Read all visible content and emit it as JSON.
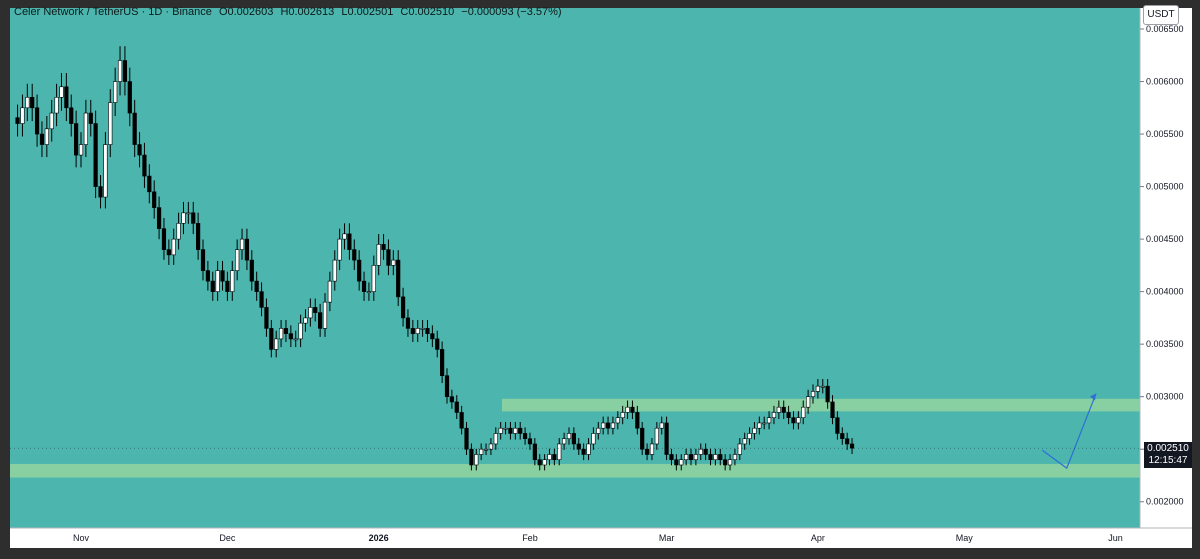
{
  "legend": {
    "symbol": "Celer Network / TetherUS · 1D · Binance",
    "open": "O0.002603",
    "high": "H0.002613",
    "low": "L0.002501",
    "close": "C0.002510",
    "change": "−0.000093 (−3.57%)"
  },
  "unit_button": "USDT",
  "last_price": {
    "price": "0.002510",
    "countdown": "12:15:47"
  },
  "colors": {
    "background": "#4cb5ae",
    "up_candle": "#ffffff",
    "down_candle": "#000000",
    "zone": "#8fd3a0",
    "projection": "#2f6fd6"
  },
  "chart_data": {
    "type": "candlestick",
    "y_ticks": [
      "0.006500",
      "0.006000",
      "0.005500",
      "0.005000",
      "0.004500",
      "0.004000",
      "0.003500",
      "0.003000",
      "0.002500",
      "0.002000"
    ],
    "ylim": [
      0.00175,
      0.0067
    ],
    "x_ticks": [
      {
        "label": "Nov",
        "day": 0
      },
      {
        "label": "Dec",
        "day": 30
      },
      {
        "label": "2026",
        "day": 61
      },
      {
        "label": "Feb",
        "day": 92
      },
      {
        "label": "Mar",
        "day": 120
      },
      {
        "label": "Apr",
        "day": 151
      },
      {
        "label": "May",
        "day": 181
      },
      {
        "label": "Jun",
        "day": 212
      }
    ],
    "support_zone": [
      0.00223,
      0.00236
    ],
    "resistance_zone": [
      0.00286,
      0.00298
    ],
    "projection": [
      {
        "day": 197,
        "price": 0.00249
      },
      {
        "day": 202,
        "price": 0.00232
      },
      {
        "day": 208,
        "price": 0.00303
      }
    ],
    "close_series": [
      0.0056,
      0.00575,
      0.00585,
      0.00575,
      0.0055,
      0.0054,
      0.00555,
      0.0057,
      0.00585,
      0.00595,
      0.00575,
      0.0056,
      0.0053,
      0.0054,
      0.0057,
      0.0056,
      0.005,
      0.0049,
      0.0054,
      0.0058,
      0.006,
      0.0062,
      0.006,
      0.0057,
      0.0054,
      0.0053,
      0.0051,
      0.00495,
      0.0048,
      0.0046,
      0.0044,
      0.00435,
      0.0045,
      0.00465,
      0.00475,
      0.00475,
      0.00465,
      0.0044,
      0.0042,
      0.0041,
      0.004,
      0.0042,
      0.0041,
      0.004,
      0.0042,
      0.0044,
      0.0045,
      0.0043,
      0.0041,
      0.004,
      0.00385,
      0.00365,
      0.00345,
      0.00355,
      0.00365,
      0.0036,
      0.00355,
      0.00355,
      0.0037,
      0.00375,
      0.00385,
      0.0038,
      0.00365,
      0.0039,
      0.0041,
      0.0043,
      0.0045,
      0.00455,
      0.0044,
      0.0043,
      0.0041,
      0.004,
      0.004,
      0.00425,
      0.00445,
      0.0044,
      0.00425,
      0.0043,
      0.00395,
      0.00375,
      0.00365,
      0.0036,
      0.00365,
      0.00365,
      0.0036,
      0.00355,
      0.00345,
      0.0032,
      0.003,
      0.00295,
      0.00285,
      0.0027,
      0.0025,
      0.00235,
      0.00245,
      0.0025,
      0.0025,
      0.00255,
      0.00265,
      0.0027,
      0.0027,
      0.00265,
      0.0027,
      0.00265,
      0.0026,
      0.00255,
      0.0024,
      0.00235,
      0.0024,
      0.00245,
      0.0024,
      0.00255,
      0.0026,
      0.00265,
      0.00255,
      0.0025,
      0.00245,
      0.00255,
      0.00265,
      0.0027,
      0.00275,
      0.0027,
      0.00275,
      0.0028,
      0.00285,
      0.0029,
      0.00285,
      0.0027,
      0.0025,
      0.00245,
      0.00255,
      0.0027,
      0.00275,
      0.00245,
      0.0024,
      0.00235,
      0.0024,
      0.00245,
      0.0024,
      0.00245,
      0.0025,
      0.00245,
      0.0024,
      0.00245,
      0.0024,
      0.00235,
      0.0024,
      0.00245,
      0.00255,
      0.0026,
      0.00265,
      0.0027,
      0.00275,
      0.00275,
      0.0028,
      0.00285,
      0.0029,
      0.00285,
      0.0028,
      0.00275,
      0.0028,
      0.0029,
      0.003,
      0.00305,
      0.0031,
      0.0031,
      0.00295,
      0.0028,
      0.00265,
      0.0026,
      0.00255,
      0.00251
    ]
  }
}
